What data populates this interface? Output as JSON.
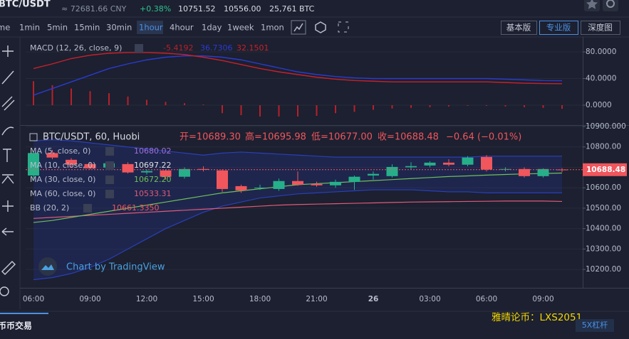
{
  "header": {
    "pair": "BTC/USDT",
    "cny": "≈ 72681.66 CNY",
    "change": "+0.38%",
    "high": "10751.52",
    "low": "10556.00",
    "volume": "25,761 BTC"
  },
  "toolbar": {
    "intervals": [
      "me",
      "1min",
      "5min",
      "15min",
      "30min",
      "1hour",
      "4hour",
      "1day",
      "1week",
      "1mon"
    ],
    "active": 5,
    "views": [
      "基本版",
      "专业版",
      "深度图"
    ],
    "active_view": 1
  },
  "chart_data": [
    {
      "type": "candlestick",
      "title": "BTC/USDT, 60, Huobi",
      "summary": [
        "开=10689.30",
        "高=10695.98",
        "低=10677.00",
        "收=10688.48",
        "−0.64 (−0.01%)"
      ],
      "categories": [
        "06:00",
        null,
        null,
        "09:00",
        null,
        null,
        "12:00",
        null,
        null,
        "15:00",
        null,
        null,
        "18:00",
        null,
        null,
        "21:00",
        null,
        null,
        "26",
        null,
        null,
        "03:00",
        null,
        null,
        "06:00",
        null,
        null,
        "09:00",
        null
      ],
      "open": [
        10660,
        10770,
        10737,
        10716,
        10699,
        10716,
        10675,
        10685,
        10654,
        10692,
        10685,
        10608,
        10598,
        10594,
        10633,
        10619,
        10612,
        10629,
        10660,
        10657,
        10700,
        10709,
        10723,
        10713,
        10751,
        10689,
        10692,
        10657,
        10689.3
      ],
      "high": [
        10780,
        10785,
        10745,
        10725,
        10730,
        10725,
        10690,
        10690,
        10700,
        10705,
        10690,
        10615,
        10615,
        10645,
        10680,
        10630,
        10640,
        10660,
        10680,
        10715,
        10725,
        10730,
        10740,
        10755,
        10760,
        10700,
        10700,
        10695,
        10695.98
      ],
      "low": [
        10640,
        10740,
        10700,
        10690,
        10690,
        10670,
        10665,
        10640,
        10645,
        10680,
        10580,
        10575,
        10590,
        10585,
        10610,
        10605,
        10600,
        10590,
        10640,
        10650,
        10690,
        10700,
        10705,
        10705,
        10680,
        10680,
        10650,
        10650,
        10677
      ],
      "close": [
        10770,
        10748,
        10713,
        10695,
        10720,
        10675,
        10682,
        10654,
        10692,
        10688,
        10594,
        10587,
        10601,
        10633,
        10615,
        10612,
        10629,
        10654,
        10668,
        10702,
        10706,
        10723,
        10713,
        10748,
        10689,
        10692,
        10657,
        10692,
        10688.48
      ],
      "up_color": "#26b08a",
      "down_color": "#f0565c",
      "ylim": [
        10110,
        10900
      ],
      "yticks": [
        {
          "value": 10900,
          "label": "10900.000"
        },
        {
          "value": 10800,
          "label": "10800.00"
        },
        {
          "value": 10700,
          "label": "10700.00"
        },
        {
          "value": 10600,
          "label": "10600.00"
        },
        {
          "value": 10500,
          "label": "10500.00"
        },
        {
          "value": 10400,
          "label": "10400.00"
        },
        {
          "value": 10300,
          "label": "10300.00"
        },
        {
          "value": 10200,
          "label": "10200.00"
        }
      ],
      "indicators": [
        {
          "name": "MA (5, close, 0)",
          "value_label": "10680.02",
          "color": "#a070d8"
        },
        {
          "name": "MA (10, close, 0)",
          "value_label": "10697.22",
          "color": "#e0e0e0"
        },
        {
          "name": "MA (30, close, 0)",
          "value_label": "10672.20",
          "color": "#6fbf5a"
        },
        {
          "name": "MA (60, close, 0)",
          "value_label": "10533.31",
          "color": "#e05a7a"
        },
        {
          "name": "BB (20, 2)",
          "value_label": "10661.3350",
          "color": "#f0565c"
        }
      ],
      "series": [
        {
          "name": "BB upper",
          "color": "#2a3fb8",
          "values": [
            10830,
            10835,
            10830,
            10820,
            10810,
            10800,
            10790,
            10780,
            10770,
            10760,
            10770,
            10775,
            10770,
            10765,
            10760,
            10755,
            10750,
            10750,
            10750,
            10750,
            10750,
            10750,
            10750,
            10750,
            10755,
            10755,
            10755,
            10755,
            10755
          ]
        },
        {
          "name": "BB lower",
          "color": "#2a3fb8",
          "values": [
            10150,
            10160,
            10180,
            10210,
            10250,
            10300,
            10350,
            10400,
            10440,
            10480,
            10510,
            10530,
            10550,
            10560,
            10570,
            10575,
            10580,
            10585,
            10590,
            10590,
            10590,
            10585,
            10580,
            10580,
            10575,
            10575,
            10575,
            10575,
            10575
          ]
        },
        {
          "name": "MA 60",
          "color": "#e05a7a",
          "values": [
            10450,
            10455,
            10460,
            10465,
            10470,
            10475,
            10480,
            10485,
            10490,
            10495,
            10500,
            10505,
            10510,
            10515,
            10518,
            10520,
            10522,
            10524,
            10526,
            10528,
            10530,
            10531,
            10532,
            10533,
            10534,
            10535,
            10535,
            10535,
            10533
          ]
        },
        {
          "name": "MA 30",
          "color": "#6fbf5a",
          "values": [
            10430,
            10440,
            10455,
            10470,
            10485,
            10500,
            10515,
            10530,
            10545,
            10560,
            10575,
            10585,
            10595,
            10605,
            10615,
            10620,
            10625,
            10630,
            10635,
            10640,
            10645,
            10650,
            10655,
            10658,
            10662,
            10665,
            10668,
            10670,
            10672
          ]
        }
      ]
    },
    {
      "type": "macd",
      "title": "MACD (12, 26, close, 9)",
      "ylim": [
        -28.8,
        102.4
      ],
      "yticks": [
        {
          "value": 80,
          "label": "80.0000"
        },
        {
          "value": 40,
          "label": "40.0000"
        },
        {
          "value": 0,
          "label": "0.0000"
        }
      ],
      "histogram": {
        "color": "#b8202a",
        "values": [
          36,
          30,
          25,
          21,
          18,
          13,
          8,
          5,
          3,
          1,
          -12,
          -15,
          -17,
          -17,
          -17,
          -16,
          -12,
          -10,
          -7,
          -5,
          -4,
          -3,
          -2,
          -1,
          -1,
          -2,
          -3,
          -4,
          -5.4192
        ]
      },
      "series": [
        {
          "color": "#2b3bd0",
          "values": [
            15,
            25,
            35,
            45,
            55,
            62,
            68,
            72,
            74,
            74,
            72,
            68,
            62,
            56,
            50,
            46,
            43,
            41,
            40,
            40,
            40,
            40,
            40,
            40,
            40,
            39,
            38,
            37,
            36.7306
          ]
        },
        {
          "color": "#c8202a",
          "values": [
            55,
            62,
            70,
            75,
            78,
            79,
            79,
            78,
            76,
            72,
            67,
            61,
            55,
            50,
            46,
            42,
            39,
            37,
            36,
            35,
            35,
            35,
            35,
            35,
            35,
            34,
            33,
            32.5,
            32.1501
          ]
        }
      ]
    }
  ],
  "watermark": "Chart by TradingView",
  "footer": {
    "tab": "币币交易",
    "promo": "雅晴论币：LXS2051",
    "leverage": "5X杠杆"
  }
}
